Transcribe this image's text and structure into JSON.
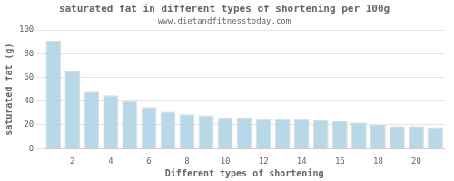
{
  "chart_data": {
    "type": "bar",
    "title": "saturated fat in different types of shortening per 100g",
    "subtitle": "www.dietandfitnesstoday.com",
    "xlabel": "Different types of shortening",
    "ylabel": "saturated fat (g)",
    "categories": [
      null,
      "2",
      null,
      "4",
      null,
      "6",
      null,
      "8",
      null,
      "10",
      null,
      "12",
      null,
      "14",
      null,
      "16",
      null,
      "18",
      null,
      "20",
      null
    ],
    "values": [
      91,
      65,
      48,
      45,
      40,
      35,
      31,
      29,
      28,
      26,
      26,
      25,
      25,
      25,
      24,
      23,
      22,
      20,
      19,
      19,
      18
    ],
    "color": "#b8d8e8",
    "ylim": [
      0,
      100
    ],
    "yticks": [
      0,
      20,
      40,
      60,
      80,
      100
    ],
    "grid": true
  }
}
